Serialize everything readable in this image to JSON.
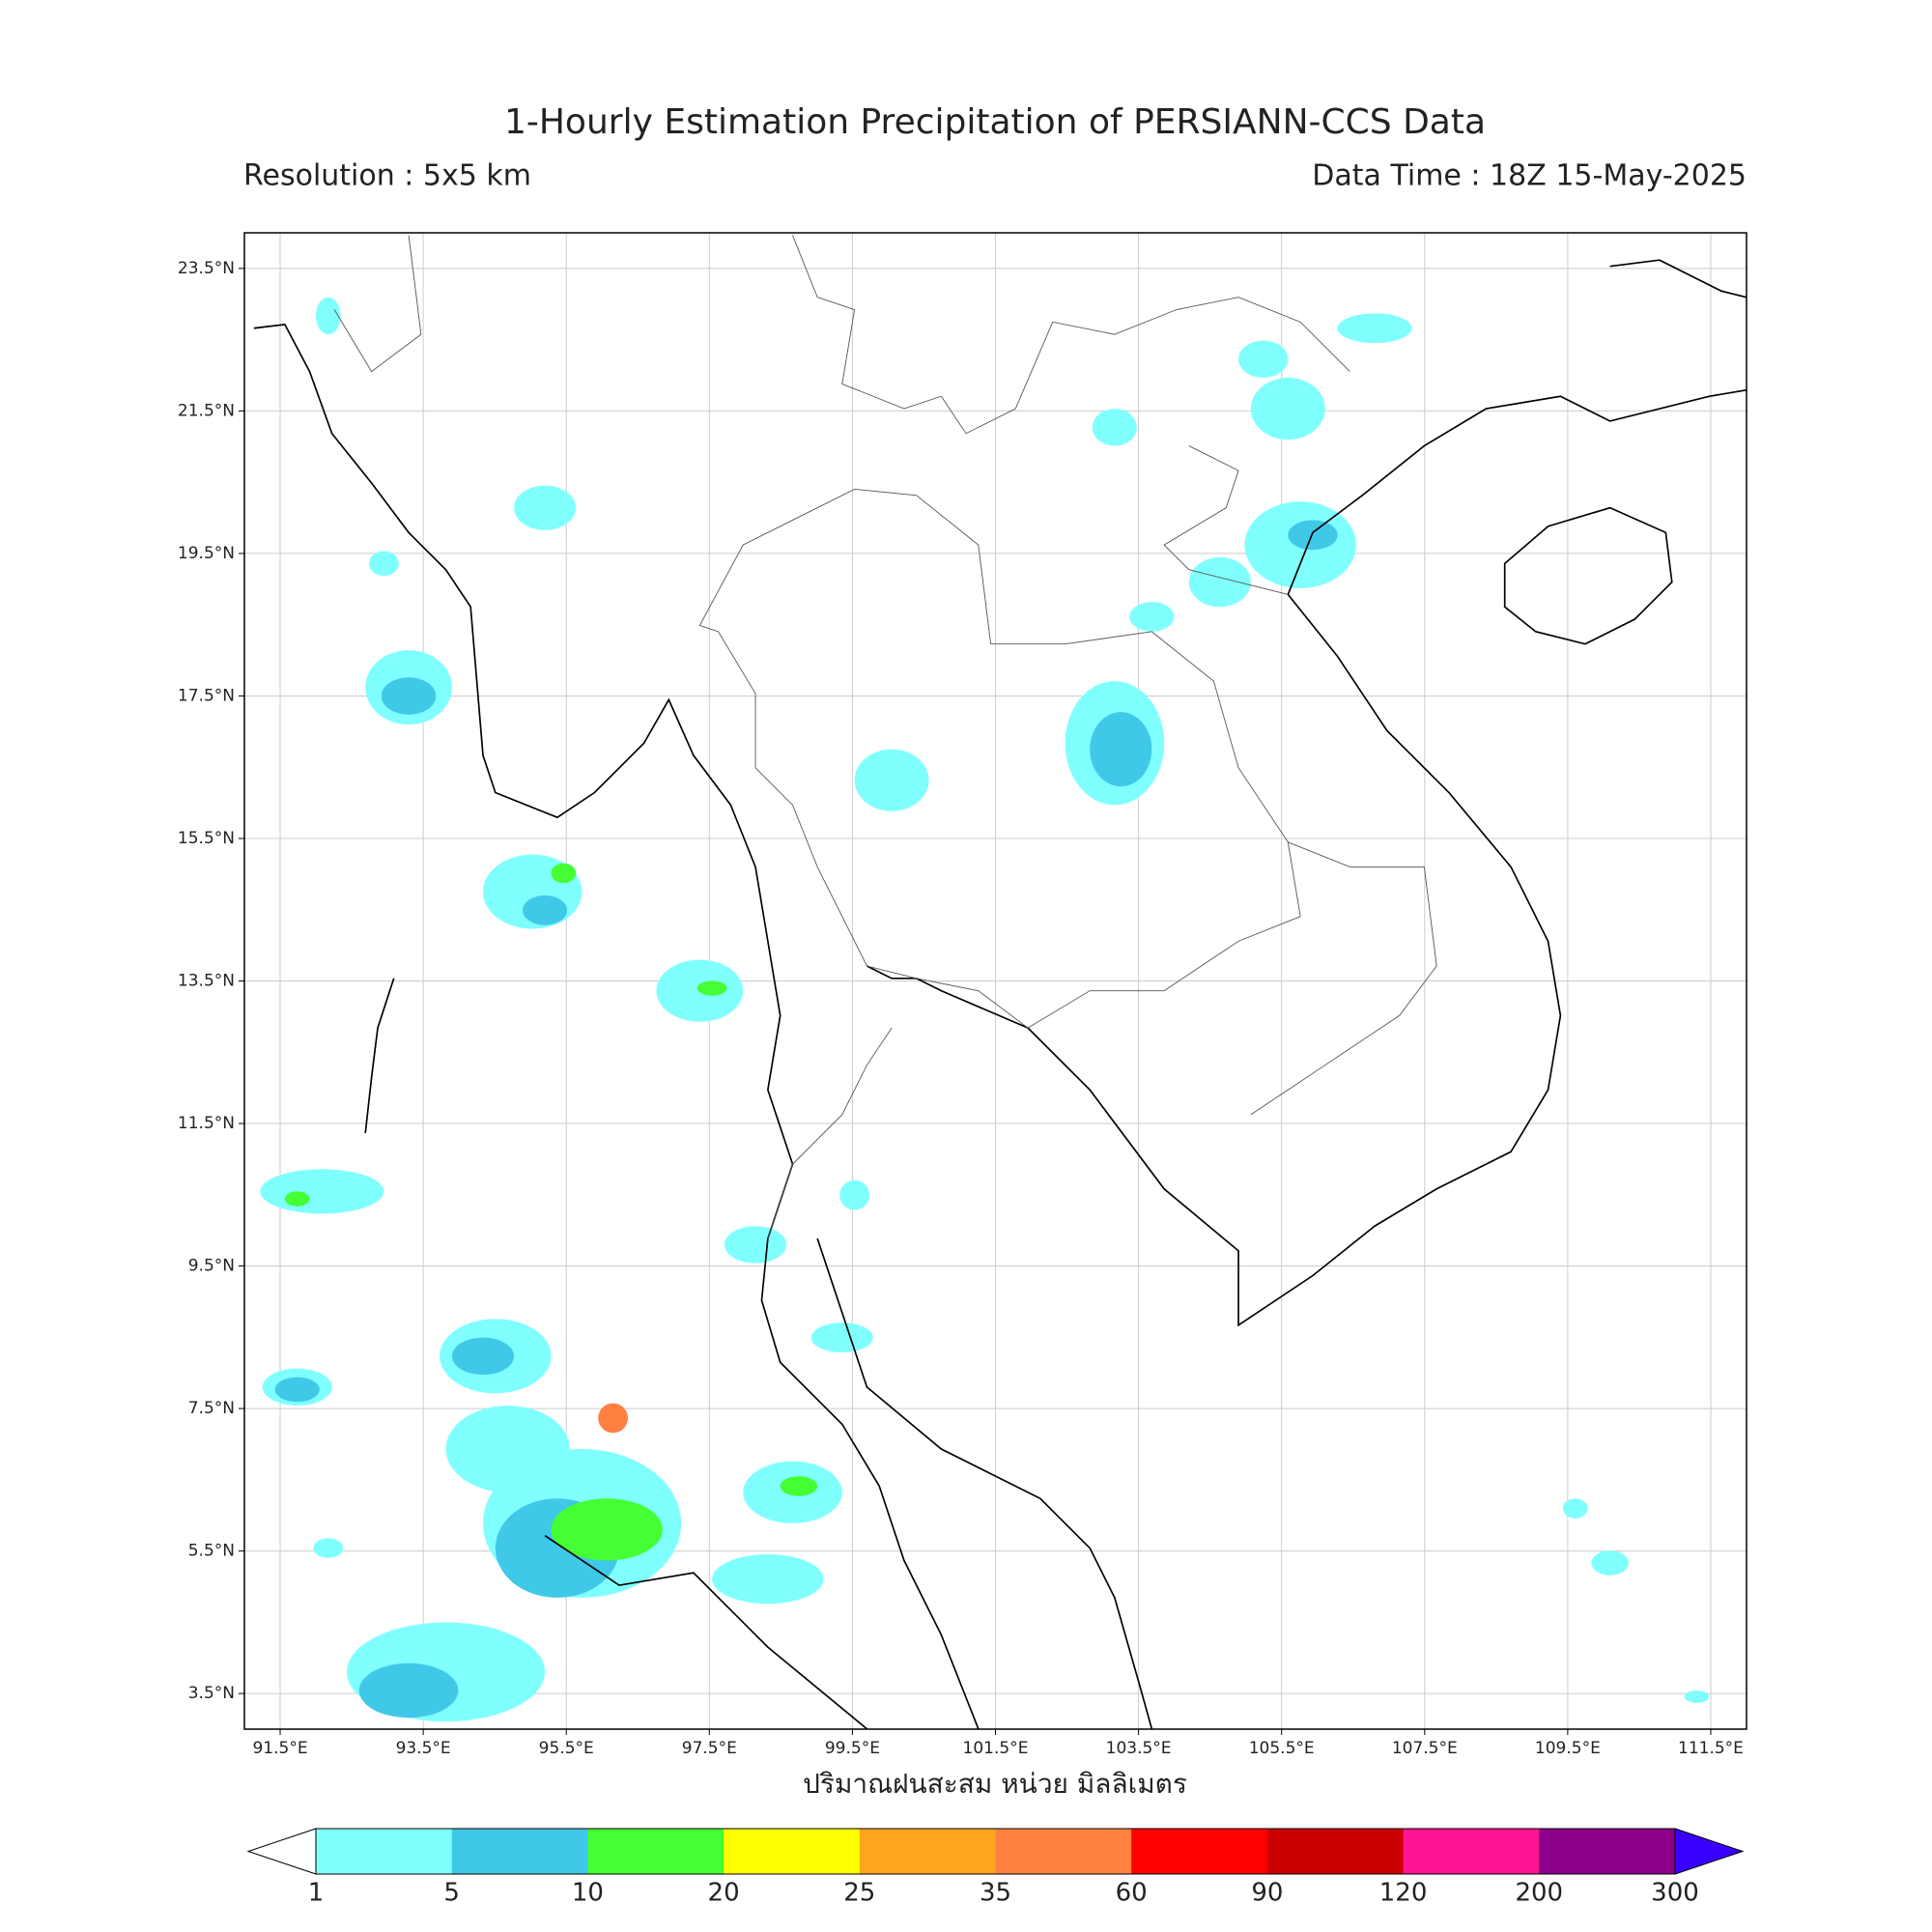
{
  "header": {
    "title": "1-Hourly Estimation Precipitation of PERSIANN-CCS Data",
    "resolution": "Resolution : 5x5 km",
    "data_time": "Data Time : 18Z 15-May-2025"
  },
  "map": {
    "lonlim": [
      91,
      112
    ],
    "latlim": [
      3,
      24
    ],
    "lat_ticks": [
      {
        "value": 3.5,
        "label": "3.5°N"
      },
      {
        "value": 5.5,
        "label": "5.5°N"
      },
      {
        "value": 7.5,
        "label": "7.5°N"
      },
      {
        "value": 9.5,
        "label": "9.5°N"
      },
      {
        "value": 11.5,
        "label": "11.5°N"
      },
      {
        "value": 13.5,
        "label": "13.5°N"
      },
      {
        "value": 15.5,
        "label": "15.5°N"
      },
      {
        "value": 17.5,
        "label": "17.5°N"
      },
      {
        "value": 19.5,
        "label": "19.5°N"
      },
      {
        "value": 21.5,
        "label": "21.5°N"
      },
      {
        "value": 23.5,
        "label": "23.5°N"
      }
    ],
    "lon_ticks": [
      {
        "value": 91.5,
        "label": "91.5°E"
      },
      {
        "value": 93.5,
        "label": "93.5°E"
      },
      {
        "value": 95.5,
        "label": "95.5°E"
      },
      {
        "value": 97.5,
        "label": "97.5°E"
      },
      {
        "value": 99.5,
        "label": "99.5°E"
      },
      {
        "value": 101.5,
        "label": "101.5°E"
      },
      {
        "value": 103.5,
        "label": "103.5°E"
      },
      {
        "value": 105.5,
        "label": "105.5°E"
      },
      {
        "value": 107.5,
        "label": "107.5°E"
      },
      {
        "value": 109.5,
        "label": "109.5°E"
      },
      {
        "value": 111.5,
        "label": "111.5°E"
      }
    ],
    "xlabel": "ปริมาณฝนสะสม หน่วย มิลลิเมตร",
    "grid": true
  },
  "colorbar": {
    "levels": [
      1,
      5,
      10,
      20,
      25,
      35,
      60,
      90,
      120,
      200,
      300
    ],
    "colors": [
      "#80ffff",
      "#40c8e8",
      "#44ff33",
      "#ffff00",
      "#ffa520",
      "#ff8040",
      "#ff0000",
      "#cc0000",
      "#ff1493",
      "#8b008b"
    ],
    "under_color": "#ffffff",
    "over_color": "#3a00ff"
  }
}
